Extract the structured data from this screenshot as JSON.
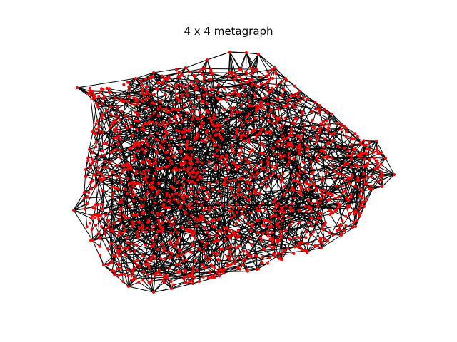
{
  "figure": {
    "title": "4 x 4 metagraph"
  },
  "graph": {
    "node_color": "#ff0000",
    "edge_color": "#000000",
    "background": "#ffffff"
  }
}
